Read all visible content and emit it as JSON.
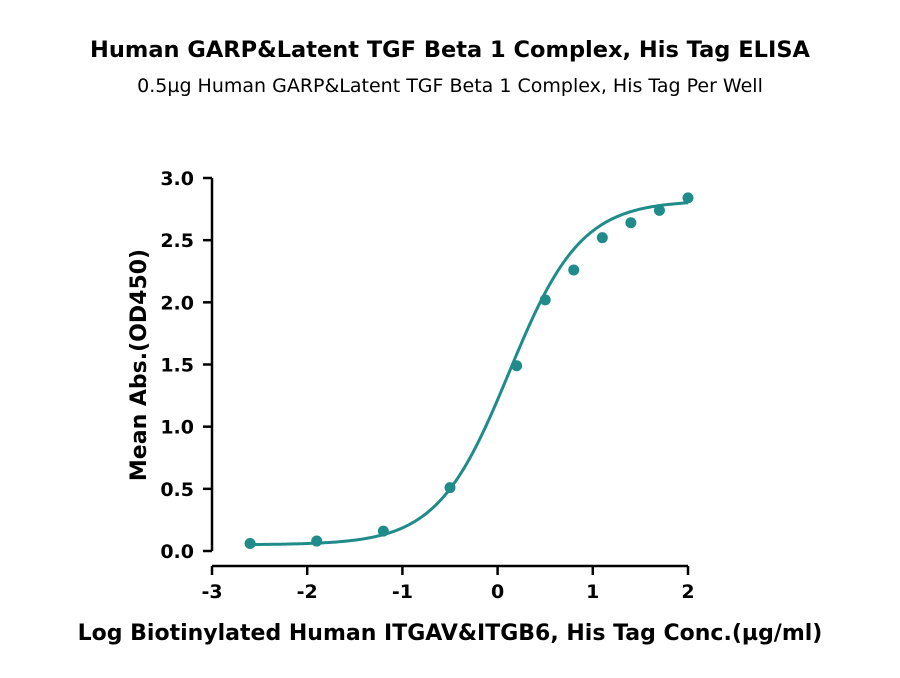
{
  "chart_data": {
    "type": "scatter",
    "title": "Human GARP&Latent TGF Beta 1 Complex, His Tag ELISA",
    "subtitle": "0.5µg Human GARP&Latent TGF Beta 1 Complex, His Tag Per Well",
    "xlabel": "Log Biotinylated Human ITGAV&ITGB6, His Tag Conc.(µg/ml)",
    "ylabel": "Mean Abs.(OD450)",
    "xlim": [
      -3,
      2
    ],
    "ylim": [
      0,
      3
    ],
    "x_ticks": [
      "-3",
      "-2",
      "-1",
      "0",
      "1",
      "2"
    ],
    "y_ticks": [
      "0.0",
      "0.5",
      "1.0",
      "1.5",
      "2.0",
      "2.5",
      "3.0"
    ],
    "grid": false,
    "color": "#1f8b8b",
    "series": [
      {
        "x": [
          -2.6,
          -1.9,
          -1.2,
          -0.5,
          0.2,
          0.5,
          0.8,
          1.1,
          1.4,
          1.7,
          2.0
        ],
        "y": [
          0.06,
          0.08,
          0.16,
          0.51,
          1.49,
          2.02,
          2.26,
          2.52,
          2.64,
          2.74,
          2.84
        ]
      }
    ],
    "fit": {
      "type": "4PL",
      "bottom": 0.05,
      "top": 2.82,
      "log_ec50": 0.12,
      "hill_slope": 1.15
    }
  }
}
